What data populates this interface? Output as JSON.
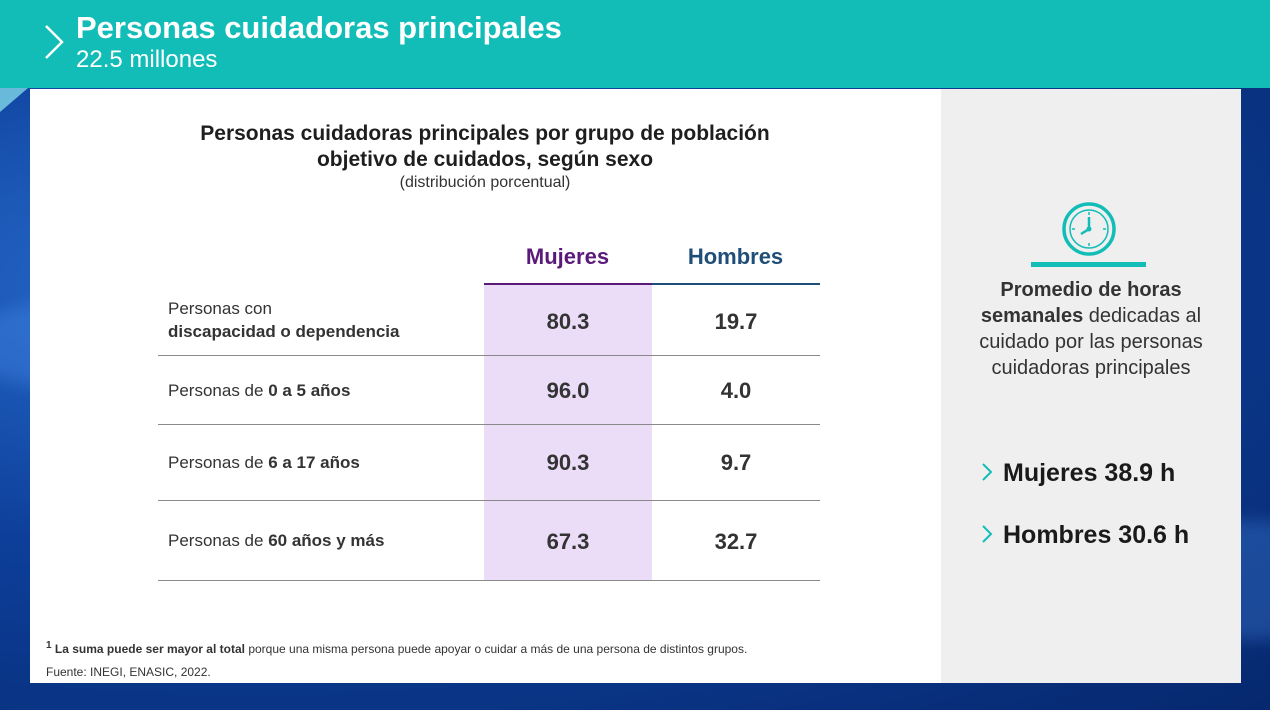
{
  "header": {
    "title": "Personas cuidadoras principales",
    "subtitle": "22.5 millones"
  },
  "chart": {
    "title": "Personas cuidadoras principales por grupo de población objetivo de cuidados, según sexo",
    "note": "(distribución porcentual)"
  },
  "chart_data": {
    "type": "table",
    "columns": [
      "Mujeres",
      "Hombres"
    ],
    "rows": [
      {
        "label_prefix": "Personas con",
        "label_bold": "discapacidad o dependencia",
        "mujeres": "80.3",
        "hombres": "19.7"
      },
      {
        "label_prefix": "Personas de ",
        "label_bold": "0 a 5 años",
        "mujeres": "96.0",
        "hombres": "4.0"
      },
      {
        "label_prefix": "Personas de ",
        "label_bold": "6 a 17 años",
        "mujeres": "90.3",
        "hombres": "9.7"
      },
      {
        "label_prefix": "Personas de ",
        "label_bold": "60 años y más",
        "mujeres": "67.3",
        "hombres": "32.7"
      }
    ]
  },
  "footnote": {
    "marker": "1",
    "bold": "La suma puede ser mayor al total",
    "rest": " porque una misma persona puede apoyar o cuidar a más de una persona de distintos grupos.",
    "source": "Fuente: INEGI, ENASIC, 2022."
  },
  "side": {
    "icon": "clock-icon",
    "text_bold": "Promedio de horas semanales",
    "text_rest": " dedicadas al cuidado por las personas cuidadoras principales",
    "stats": [
      "Mujeres 38.9 h",
      "Hombres 30.6 h"
    ]
  },
  "colors": {
    "accent": "#12bdb8",
    "mujeres": "#5a1a7a",
    "hombres": "#1f4e79",
    "mujeres_bg": "#ebdcf8"
  }
}
